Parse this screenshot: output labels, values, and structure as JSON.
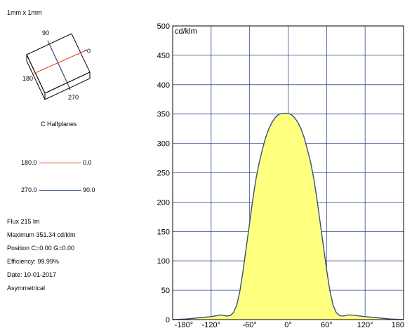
{
  "panel": {
    "size_label": "1mm x 1mm",
    "cube_labels": {
      "c90": "90",
      "c0": "0",
      "c180": "180",
      "c270": "270"
    },
    "halfplanes_title": "C Halfplanes",
    "legend": [
      {
        "from": "180.0",
        "to": "0.0",
        "color": "#e8432e"
      },
      {
        "from": "270.0",
        "to": "90.0",
        "color": "#2f4a8a"
      }
    ],
    "stats": [
      "Flux 215  lm",
      "Maximum 351.34  cd/klm",
      "Position C=0.00 G=0.00",
      "Efficiency:  99.99%",
      "Date: 10-01-2017",
      "Asymmetrical"
    ]
  },
  "chart_data": {
    "type": "area",
    "unit_label": "cd/klm",
    "x_ticks": [
      "-180°",
      "-120°",
      "-60°",
      "0°",
      "60°",
      "120°",
      "180"
    ],
    "x_tick_values": [
      -180,
      -120,
      -60,
      0,
      60,
      120,
      180
    ],
    "y_ticks": [
      "0",
      "50",
      "100",
      "150",
      "200",
      "250",
      "300",
      "350",
      "400",
      "450",
      "500"
    ],
    "y_tick_values": [
      0,
      50,
      100,
      150,
      200,
      250,
      300,
      350,
      400,
      450,
      500
    ],
    "xlim": [
      -180,
      180
    ],
    "ylim": [
      0,
      500
    ],
    "grid": true,
    "fill_color": "#ffff80",
    "line_color": "#3a4f7a",
    "series": [
      {
        "x": [
          -180,
          -160,
          -140,
          -120,
          -105,
          -95,
          -90,
          -85,
          -80,
          -75,
          -70,
          -65,
          -60,
          -55,
          -50,
          -45,
          -40,
          -35,
          -30,
          -25,
          -20,
          -15,
          -10,
          -5,
          0,
          5,
          10,
          15,
          20,
          25,
          30,
          35,
          40,
          45,
          50,
          55,
          60,
          65,
          70,
          75,
          80,
          85,
          90,
          95,
          105,
          120,
          140,
          160,
          180
        ],
        "y": [
          0,
          1,
          3,
          5,
          8,
          6,
          7,
          12,
          25,
          50,
          85,
          125,
          165,
          205,
          240,
          268,
          290,
          310,
          325,
          336,
          344,
          349,
          351,
          351.34,
          351,
          349,
          344,
          336,
          325,
          310,
          290,
          268,
          240,
          205,
          165,
          125,
          85,
          50,
          25,
          12,
          7,
          6,
          7,
          8,
          7,
          5,
          3,
          1,
          0
        ]
      }
    ]
  }
}
